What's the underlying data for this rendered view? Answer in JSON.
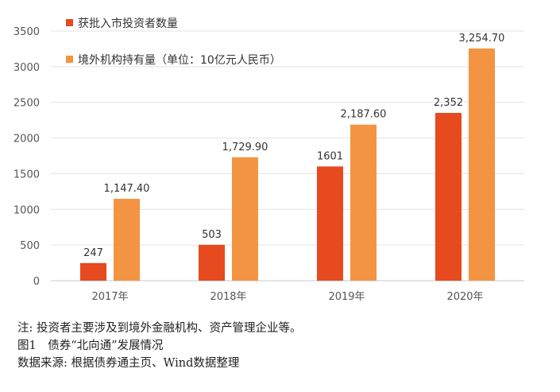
{
  "chart_data": {
    "type": "bar",
    "categories": [
      "2017年",
      "2018年",
      "2019年",
      "2020年"
    ],
    "series": [
      {
        "name": "获批入市投资者数量",
        "color": "#E64A1E",
        "values": [
          247,
          503,
          1601,
          2352
        ],
        "labels": [
          "247",
          "503",
          "1601",
          "2,352"
        ]
      },
      {
        "name": "境外机构持有量（单位：10亿元人民币）",
        "color": "#F39442",
        "values": [
          1147.4,
          1729.9,
          2187.6,
          3254.7
        ],
        "labels": [
          "1,147.40",
          "1,729.90",
          "2,187.60",
          "3,254.70"
        ]
      }
    ],
    "yticks": [
      "0",
      "500",
      "1000",
      "1500",
      "2000",
      "2500",
      "3000",
      "3500"
    ],
    "ylim": [
      0,
      3500
    ],
    "grid": true,
    "legend_position": "top-left"
  },
  "notes": {
    "note": "注: 投资者主要涉及到境外金融机构、资产管理企业等。",
    "caption": "图1　债券“北向通”发展情况",
    "source": "数据来源: 根据债券通主页、Wind数据整理"
  }
}
